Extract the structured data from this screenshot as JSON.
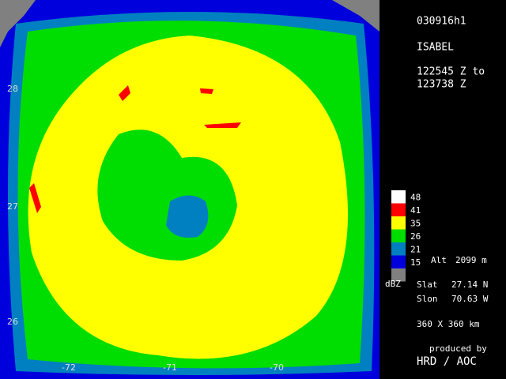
{
  "radar": {
    "flight": "030916h1",
    "storm": "ISABEL",
    "time_start": "122545 Z to",
    "time_end": "123738 Z",
    "lat_labels": [
      "28",
      "27",
      "26"
    ],
    "lon_labels": [
      "-72",
      "-71",
      "-70"
    ],
    "legend": {
      "items": [
        {
          "label": "48",
          "color": "#ffffff"
        },
        {
          "label": "41",
          "color": "#ff0000"
        },
        {
          "label": "35",
          "color": "#ffff00"
        },
        {
          "label": "26",
          "color": "#00dd00"
        },
        {
          "label": "21",
          "color": "#0080c0"
        },
        {
          "label": "15",
          "color": "#0000dd"
        },
        {
          "label": null,
          "color": "#808080"
        }
      ],
      "unit": "dBZ"
    },
    "alt_label": "Alt",
    "alt_value": "2099 m",
    "slat_label": "Slat",
    "slat_value": "27.14 N",
    "slon_label": "Slon",
    "slon_value": "70.63 W",
    "extent": "360 X 360 km",
    "credit_line": "produced by",
    "credit": "HRD / AOC"
  }
}
